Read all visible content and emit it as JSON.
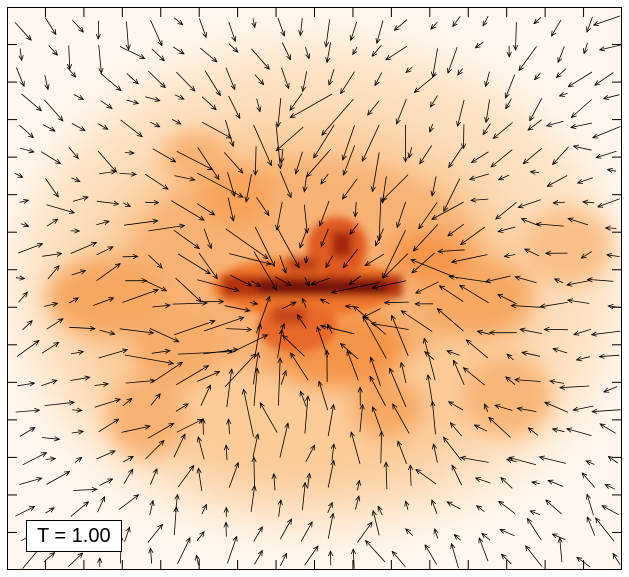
{
  "figure": {
    "label": "T = 1.00"
  },
  "colors": {
    "background": "#ffffff",
    "light": "#fde6cc",
    "mid": "#f7a35a",
    "strong": "#f0772a",
    "dark": "#b3330f",
    "darkest": "#6e0b08",
    "arrow": "#000000",
    "frame": "#000000"
  }
}
